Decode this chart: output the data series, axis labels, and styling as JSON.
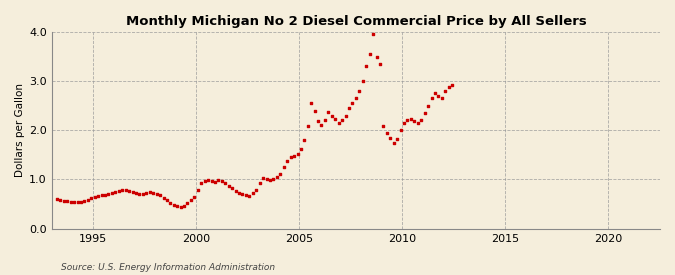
{
  "title": "Monthly Michigan No 2 Diesel Commercial Price by All Sellers",
  "ylabel": "Dollars per Gallon",
  "source": "Source: U.S. Energy Information Administration",
  "background_color": "#f5eedc",
  "dot_color": "#cc0000",
  "grid_color": "#999999",
  "xlim": [
    1993.0,
    2022.5
  ],
  "ylim": [
    0.0,
    4.0
  ],
  "yticks": [
    0.0,
    1.0,
    2.0,
    3.0,
    4.0
  ],
  "xticks": [
    1995,
    2000,
    2005,
    2010,
    2015,
    2020
  ],
  "data": [
    [
      1993.25,
      0.6
    ],
    [
      1993.42,
      0.58
    ],
    [
      1993.58,
      0.57
    ],
    [
      1993.75,
      0.56
    ],
    [
      1993.92,
      0.55
    ],
    [
      1994.08,
      0.55
    ],
    [
      1994.25,
      0.54
    ],
    [
      1994.42,
      0.55
    ],
    [
      1994.58,
      0.57
    ],
    [
      1994.75,
      0.59
    ],
    [
      1994.92,
      0.62
    ],
    [
      1995.08,
      0.65
    ],
    [
      1995.25,
      0.67
    ],
    [
      1995.42,
      0.68
    ],
    [
      1995.58,
      0.69
    ],
    [
      1995.75,
      0.7
    ],
    [
      1995.92,
      0.72
    ],
    [
      1996.08,
      0.74
    ],
    [
      1996.25,
      0.76
    ],
    [
      1996.42,
      0.78
    ],
    [
      1996.58,
      0.79
    ],
    [
      1996.75,
      0.77
    ],
    [
      1996.92,
      0.75
    ],
    [
      1997.08,
      0.73
    ],
    [
      1997.25,
      0.71
    ],
    [
      1997.42,
      0.7
    ],
    [
      1997.58,
      0.72
    ],
    [
      1997.75,
      0.74
    ],
    [
      1997.92,
      0.73
    ],
    [
      1998.08,
      0.71
    ],
    [
      1998.25,
      0.68
    ],
    [
      1998.42,
      0.63
    ],
    [
      1998.58,
      0.58
    ],
    [
      1998.75,
      0.53
    ],
    [
      1998.92,
      0.49
    ],
    [
      1999.08,
      0.47
    ],
    [
      1999.25,
      0.45
    ],
    [
      1999.42,
      0.47
    ],
    [
      1999.58,
      0.52
    ],
    [
      1999.75,
      0.58
    ],
    [
      1999.92,
      0.65
    ],
    [
      2000.08,
      0.78
    ],
    [
      2000.25,
      0.93
    ],
    [
      2000.42,
      0.97
    ],
    [
      2000.58,
      0.98
    ],
    [
      2000.75,
      0.96
    ],
    [
      2000.92,
      0.95
    ],
    [
      2001.08,
      0.98
    ],
    [
      2001.25,
      0.97
    ],
    [
      2001.42,
      0.93
    ],
    [
      2001.58,
      0.87
    ],
    [
      2001.75,
      0.82
    ],
    [
      2001.92,
      0.77
    ],
    [
      2002.08,
      0.72
    ],
    [
      2002.25,
      0.7
    ],
    [
      2002.42,
      0.68
    ],
    [
      2002.58,
      0.67
    ],
    [
      2002.75,
      0.72
    ],
    [
      2002.92,
      0.78
    ],
    [
      2003.08,
      0.93
    ],
    [
      2003.25,
      1.02
    ],
    [
      2003.42,
      1.0
    ],
    [
      2003.58,
      0.98
    ],
    [
      2003.75,
      1.0
    ],
    [
      2003.92,
      1.05
    ],
    [
      2004.08,
      1.12
    ],
    [
      2004.25,
      1.25
    ],
    [
      2004.42,
      1.38
    ],
    [
      2004.58,
      1.45
    ],
    [
      2004.75,
      1.48
    ],
    [
      2004.92,
      1.52
    ],
    [
      2005.08,
      1.62
    ],
    [
      2005.25,
      1.8
    ],
    [
      2005.42,
      2.08
    ],
    [
      2005.58,
      2.55
    ],
    [
      2005.75,
      2.4
    ],
    [
      2005.92,
      2.18
    ],
    [
      2006.08,
      2.1
    ],
    [
      2006.25,
      2.2
    ],
    [
      2006.42,
      2.38
    ],
    [
      2006.58,
      2.3
    ],
    [
      2006.75,
      2.22
    ],
    [
      2006.92,
      2.15
    ],
    [
      2007.08,
      2.2
    ],
    [
      2007.25,
      2.3
    ],
    [
      2007.42,
      2.45
    ],
    [
      2007.58,
      2.55
    ],
    [
      2007.75,
      2.65
    ],
    [
      2007.92,
      2.8
    ],
    [
      2008.08,
      3.0
    ],
    [
      2008.25,
      3.3
    ],
    [
      2008.42,
      3.55
    ],
    [
      2008.58,
      3.95
    ],
    [
      2008.75,
      3.5
    ],
    [
      2008.92,
      3.35
    ],
    [
      2009.08,
      2.08
    ],
    [
      2009.25,
      1.95
    ],
    [
      2009.42,
      1.85
    ],
    [
      2009.58,
      1.75
    ],
    [
      2009.75,
      1.82
    ],
    [
      2009.92,
      2.0
    ],
    [
      2010.08,
      2.15
    ],
    [
      2010.25,
      2.2
    ],
    [
      2010.42,
      2.22
    ],
    [
      2010.58,
      2.18
    ],
    [
      2010.75,
      2.15
    ],
    [
      2010.92,
      2.2
    ],
    [
      2011.08,
      2.35
    ],
    [
      2011.25,
      2.5
    ],
    [
      2011.42,
      2.65
    ],
    [
      2011.58,
      2.75
    ],
    [
      2011.75,
      2.7
    ],
    [
      2011.92,
      2.65
    ],
    [
      2012.08,
      2.8
    ],
    [
      2012.25,
      2.88
    ],
    [
      2012.42,
      2.92
    ]
  ]
}
